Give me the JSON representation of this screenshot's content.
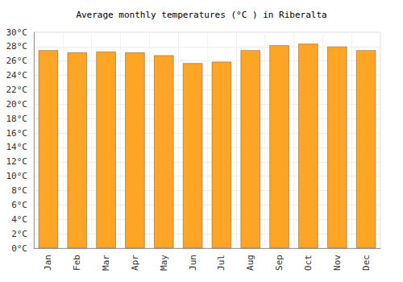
{
  "chart_data": {
    "type": "bar",
    "title": "Average monthly temperatures (°C ) in Riberalta",
    "categories": [
      "Jan",
      "Feb",
      "Mar",
      "Apr",
      "May",
      "Jun",
      "Jul",
      "Aug",
      "Sep",
      "Oct",
      "Nov",
      "Dec"
    ],
    "values": [
      27.5,
      27.2,
      27.3,
      27.2,
      26.8,
      25.7,
      25.9,
      27.5,
      28.2,
      28.4,
      28.0,
      27.5
    ],
    "color": "#ffa526",
    "ylim": [
      0,
      30
    ],
    "yticks": [
      {
        "value": 0,
        "label": "0°C"
      },
      {
        "value": 2,
        "label": "2°C"
      },
      {
        "value": 4,
        "label": "4°C"
      },
      {
        "value": 6,
        "label": "6°C"
      },
      {
        "value": 8,
        "label": "8°C"
      },
      {
        "value": 10,
        "label": "10°C"
      },
      {
        "value": 12,
        "label": "12°C"
      },
      {
        "value": 14,
        "label": "14°C"
      },
      {
        "value": 16,
        "label": "16°C"
      },
      {
        "value": 18,
        "label": "18°C"
      },
      {
        "value": 20,
        "label": "20°C"
      },
      {
        "value": 22,
        "label": "22°C"
      },
      {
        "value": 24,
        "label": "24°C"
      },
      {
        "value": 26,
        "label": "26°C"
      },
      {
        "value": 28,
        "label": "28°C"
      },
      {
        "value": 30,
        "label": "30°C"
      }
    ],
    "grid": true
  }
}
